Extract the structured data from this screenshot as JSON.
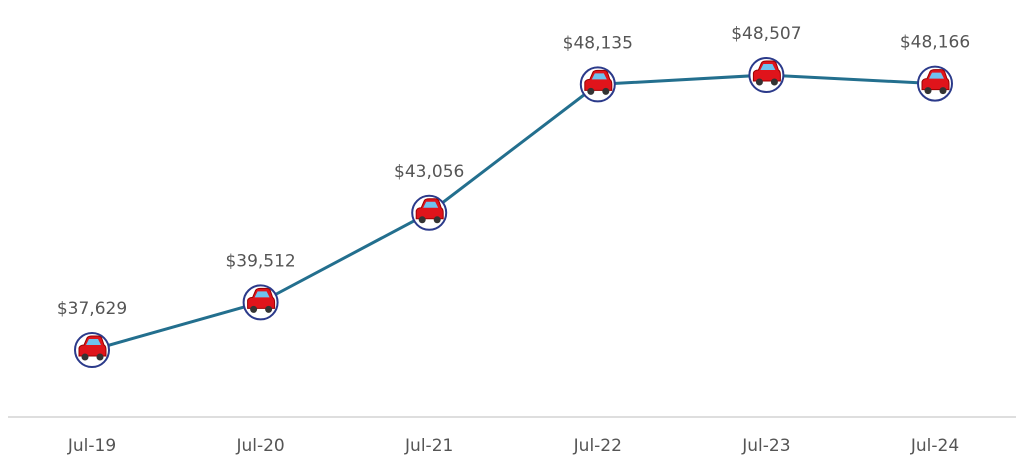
{
  "chart_data": {
    "type": "line",
    "categories": [
      "Jul-19",
      "Jul-20",
      "Jul-21",
      "Jul-22",
      "Jul-23",
      "Jul-24"
    ],
    "values": [
      37629,
      39512,
      43056,
      48135,
      48507,
      48166
    ],
    "value_labels": [
      "$37,629",
      "$39,512",
      "$43,056",
      "$48,135",
      "$48,507",
      "$48,166"
    ],
    "color": "#236f8e"
  }
}
